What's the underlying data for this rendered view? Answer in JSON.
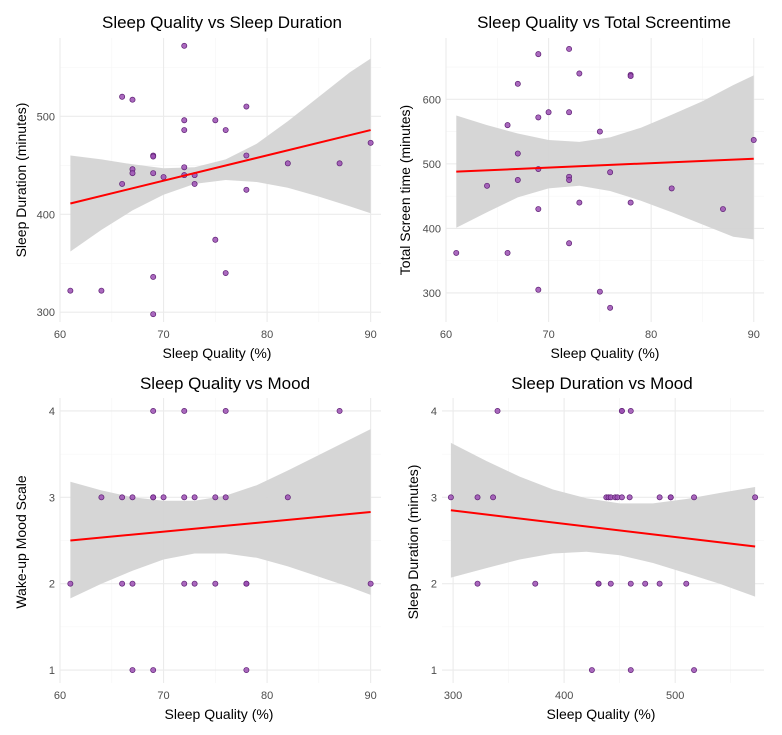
{
  "colors": {
    "point_fill": "#9b4fb3",
    "point_stroke": "#5e1f74",
    "line": "#ff0000",
    "ribbon": "#d4d4d4",
    "grid_major": "#ebebeb",
    "grid_minor": "#f5f5f5",
    "text": "#000000",
    "tick_text": "#4d4d4d"
  },
  "chart_data": [
    {
      "type": "scatter",
      "title": "Sleep Quality vs Sleep Duration",
      "xlabel": "Sleep Quality (%)",
      "ylabel": "Sleep Duration (minutes)",
      "xlim": [
        60,
        91
      ],
      "ylim": [
        290,
        580
      ],
      "xticks": [
        60,
        70,
        80,
        90
      ],
      "yticks": [
        300,
        400,
        500
      ],
      "points": [
        [
          61,
          322
        ],
        [
          64,
          322
        ],
        [
          66,
          520
        ],
        [
          66,
          431
        ],
        [
          67,
          517
        ],
        [
          67,
          446
        ],
        [
          67,
          442
        ],
        [
          69,
          460
        ],
        [
          69,
          459
        ],
        [
          69,
          442
        ],
        [
          69,
          336
        ],
        [
          69,
          298
        ],
        [
          70,
          438
        ],
        [
          72,
          572
        ],
        [
          72,
          496
        ],
        [
          72,
          486
        ],
        [
          72,
          448
        ],
        [
          72,
          440
        ],
        [
          73,
          440
        ],
        [
          73,
          431
        ],
        [
          75,
          496
        ],
        [
          75,
          374
        ],
        [
          76,
          486
        ],
        [
          76,
          340
        ],
        [
          78,
          510
        ],
        [
          78,
          460
        ],
        [
          78,
          425
        ],
        [
          82,
          452
        ],
        [
          87,
          452
        ],
        [
          90,
          473
        ]
      ],
      "trend": {
        "x": [
          61,
          90
        ],
        "y": [
          411,
          486
        ]
      },
      "band": {
        "x": [
          61,
          64,
          67,
          70,
          73,
          76,
          79,
          82,
          85,
          88,
          90
        ],
        "lower": [
          362,
          384,
          404,
          420,
          431,
          435,
          433,
          427,
          418,
          408,
          401
        ],
        "upper": [
          460,
          456,
          451,
          447,
          448,
          456,
          472,
          495,
          520,
          545,
          559
        ]
      }
    },
    {
      "type": "scatter",
      "title": "Sleep Quality vs Total Screentime",
      "xlabel": "Sleep Quality (%)",
      "ylabel": "Total Screen time (minutes)",
      "xlim": [
        60,
        91
      ],
      "ylim": [
        255,
        695
      ],
      "xticks": [
        60,
        70,
        80,
        90
      ],
      "yticks": [
        300,
        400,
        500,
        600
      ],
      "points": [
        [
          61,
          362
        ],
        [
          64,
          466
        ],
        [
          66,
          560
        ],
        [
          66,
          362
        ],
        [
          67,
          624
        ],
        [
          67,
          516
        ],
        [
          67,
          475
        ],
        [
          69,
          670
        ],
        [
          69,
          572
        ],
        [
          69,
          492
        ],
        [
          69,
          430
        ],
        [
          69,
          305
        ],
        [
          70,
          580
        ],
        [
          72,
          678
        ],
        [
          72,
          580
        ],
        [
          72,
          480
        ],
        [
          72,
          475
        ],
        [
          72,
          377
        ],
        [
          73,
          640
        ],
        [
          73,
          440
        ],
        [
          75,
          550
        ],
        [
          75,
          302
        ],
        [
          76,
          487
        ],
        [
          76,
          277
        ],
        [
          78,
          638
        ],
        [
          78,
          636
        ],
        [
          78,
          440
        ],
        [
          82,
          462
        ],
        [
          87,
          430
        ],
        [
          90,
          537
        ]
      ],
      "trend": {
        "x": [
          61,
          90
        ],
        "y": [
          488,
          508
        ]
      },
      "band": {
        "x": [
          61,
          64,
          67,
          70,
          73,
          76,
          79,
          82,
          85,
          88,
          90
        ],
        "lower": [
          401,
          425,
          448,
          462,
          466,
          458,
          443,
          425,
          406,
          387,
          383
        ],
        "upper": [
          575,
          560,
          547,
          537,
          534,
          541,
          556,
          576,
          597,
          622,
          637
        ]
      }
    },
    {
      "type": "scatter",
      "title": "Sleep Quality vs Mood",
      "xlabel": "Sleep Quality (%)",
      "ylabel": "Wake-up Mood Scale",
      "xlim": [
        60,
        91
      ],
      "ylim": [
        0.85,
        4.15
      ],
      "xticks": [
        60,
        70,
        80,
        90
      ],
      "yticks": [
        1,
        2,
        3,
        4
      ],
      "points": [
        [
          61,
          2
        ],
        [
          64,
          3
        ],
        [
          66,
          3
        ],
        [
          66,
          2
        ],
        [
          67,
          3
        ],
        [
          67,
          2
        ],
        [
          67,
          1
        ],
        [
          69,
          4
        ],
        [
          69,
          3
        ],
        [
          69,
          3
        ],
        [
          69,
          1
        ],
        [
          70,
          3
        ],
        [
          72,
          4
        ],
        [
          72,
          3
        ],
        [
          72,
          2
        ],
        [
          73,
          3
        ],
        [
          73,
          2
        ],
        [
          75,
          3
        ],
        [
          75,
          2
        ],
        [
          76,
          4
        ],
        [
          76,
          3
        ],
        [
          78,
          2
        ],
        [
          78,
          2
        ],
        [
          78,
          1
        ],
        [
          82,
          3
        ],
        [
          87,
          4
        ],
        [
          90,
          2
        ]
      ],
      "trend": {
        "x": [
          61,
          90
        ],
        "y": [
          2.5,
          2.83
        ]
      },
      "band": {
        "x": [
          61,
          64,
          67,
          70,
          73,
          76,
          79,
          82,
          85,
          88,
          90
        ],
        "lower": [
          1.83,
          2.0,
          2.15,
          2.28,
          2.35,
          2.35,
          2.3,
          2.2,
          2.08,
          1.96,
          1.87
        ],
        "upper": [
          3.18,
          3.08,
          3.0,
          2.96,
          2.96,
          3.02,
          3.14,
          3.31,
          3.49,
          3.67,
          3.79
        ]
      }
    },
    {
      "type": "scatter",
      "title": "Sleep Duration vs Mood",
      "xlabel": "Sleep Quality (%)",
      "ylabel": "Sleep Duration (minutes)",
      "xlim": [
        290,
        580
      ],
      "ylim": [
        0.85,
        4.15
      ],
      "xticks": [
        300,
        400,
        500
      ],
      "yticks": [
        1,
        2,
        3,
        4
      ],
      "points": [
        [
          298,
          3
        ],
        [
          322,
          3
        ],
        [
          322,
          2
        ],
        [
          336,
          3
        ],
        [
          340,
          4
        ],
        [
          374,
          2
        ],
        [
          425,
          1
        ],
        [
          431,
          2
        ],
        [
          431,
          2
        ],
        [
          438,
          3
        ],
        [
          440,
          3
        ],
        [
          442,
          3
        ],
        [
          442,
          2
        ],
        [
          446,
          3
        ],
        [
          448,
          3
        ],
        [
          452,
          4
        ],
        [
          452,
          4
        ],
        [
          452,
          3
        ],
        [
          459,
          3
        ],
        [
          460,
          4
        ],
        [
          460,
          2
        ],
        [
          460,
          1
        ],
        [
          473,
          2
        ],
        [
          486,
          3
        ],
        [
          486,
          2
        ],
        [
          496,
          3
        ],
        [
          496,
          3
        ],
        [
          510,
          2
        ],
        [
          517,
          3
        ],
        [
          517,
          1
        ],
        [
          572,
          3
        ]
      ],
      "trend": {
        "x": [
          298,
          572
        ],
        "y": [
          2.85,
          2.43
        ]
      },
      "band": {
        "x": [
          298,
          330,
          360,
          390,
          420,
          450,
          480,
          510,
          540,
          572
        ],
        "lower": [
          2.07,
          2.18,
          2.28,
          2.35,
          2.37,
          2.33,
          2.24,
          2.12,
          2.0,
          1.85
        ],
        "upper": [
          3.63,
          3.42,
          3.24,
          3.09,
          2.99,
          2.93,
          2.93,
          2.98,
          3.05,
          3.12
        ]
      }
    }
  ]
}
